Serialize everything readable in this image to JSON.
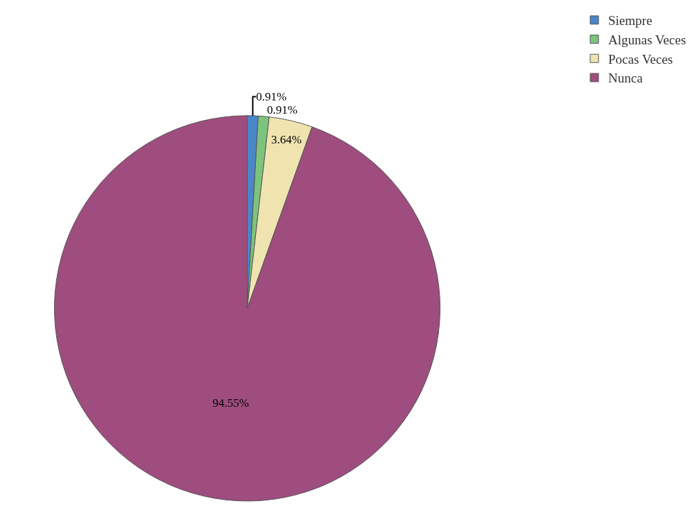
{
  "chart_data": {
    "type": "pie",
    "categories": [
      "Siempre",
      "Algunas Veces",
      "Pocas Veces",
      "Nunca"
    ],
    "values": [
      0.91,
      0.91,
      3.64,
      94.55
    ],
    "colors": [
      "#4a86c8",
      "#7cc47c",
      "#efe4b0",
      "#9e4d7e"
    ],
    "value_labels": [
      "0.91%",
      "0.91%",
      "3.64%",
      "94.55%"
    ],
    "legend": "top right"
  }
}
